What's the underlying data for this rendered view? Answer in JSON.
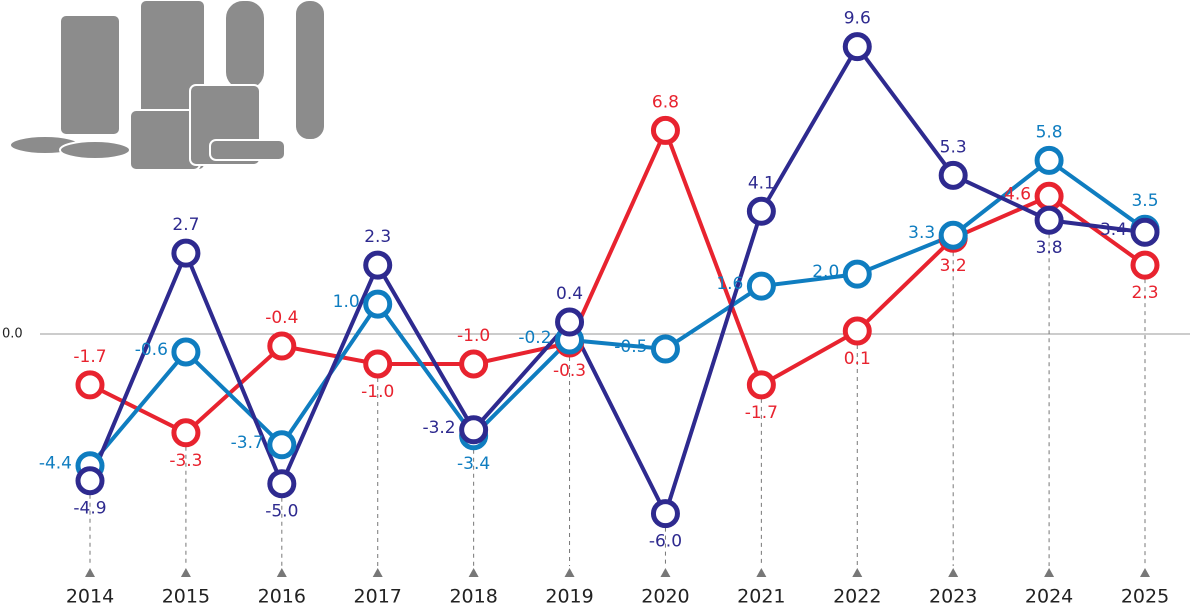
{
  "chart_data": {
    "type": "line",
    "categories": [
      "2014",
      "2015",
      "2016",
      "2017",
      "2018",
      "2019",
      "2020",
      "2021",
      "2022",
      "2023",
      "2024",
      "2025"
    ],
    "series": [
      {
        "color": "#e8232f",
        "values": [
          -1.7,
          -3.3,
          -0.4,
          -1.0,
          -1.0,
          -0.3,
          6.8,
          -1.7,
          0.1,
          3.2,
          4.6,
          2.3
        ],
        "value_labels": [
          "-1.7",
          "-3.3",
          "-0.4",
          "-1.0",
          "-1.0",
          "-0.3",
          "6.8",
          "-1.7",
          "0.1",
          "3.2",
          "4.6",
          "2.3"
        ]
      },
      {
        "color": "#0f7dc0",
        "values": [
          -4.4,
          -0.6,
          -3.7,
          1.0,
          -3.4,
          -0.2,
          -0.5,
          1.6,
          2.0,
          3.3,
          5.8,
          3.5
        ],
        "value_labels": [
          "-4.4",
          "-0.6",
          "-3.7",
          "1.0",
          "-3.4",
          "-0.2",
          "-0.5",
          "1.6",
          "2.0",
          "3.3",
          "5.8",
          "3.5"
        ]
      },
      {
        "color": "#2e2a8f",
        "values": [
          -4.9,
          2.7,
          -5.0,
          2.3,
          -3.2,
          0.4,
          -6.0,
          4.1,
          9.6,
          5.3,
          3.8,
          3.4
        ],
        "value_labels": [
          "-4.9",
          "2.7",
          "-5.0",
          "2.3",
          "-3.2",
          "0.4",
          "-6.0",
          "4.1",
          "9.6",
          "5.3",
          "3.8",
          "3.4"
        ]
      }
    ],
    "ylim": [
      -8,
      11
    ],
    "yticks": [
      {
        "value": 0,
        "label": "0.0"
      }
    ]
  }
}
